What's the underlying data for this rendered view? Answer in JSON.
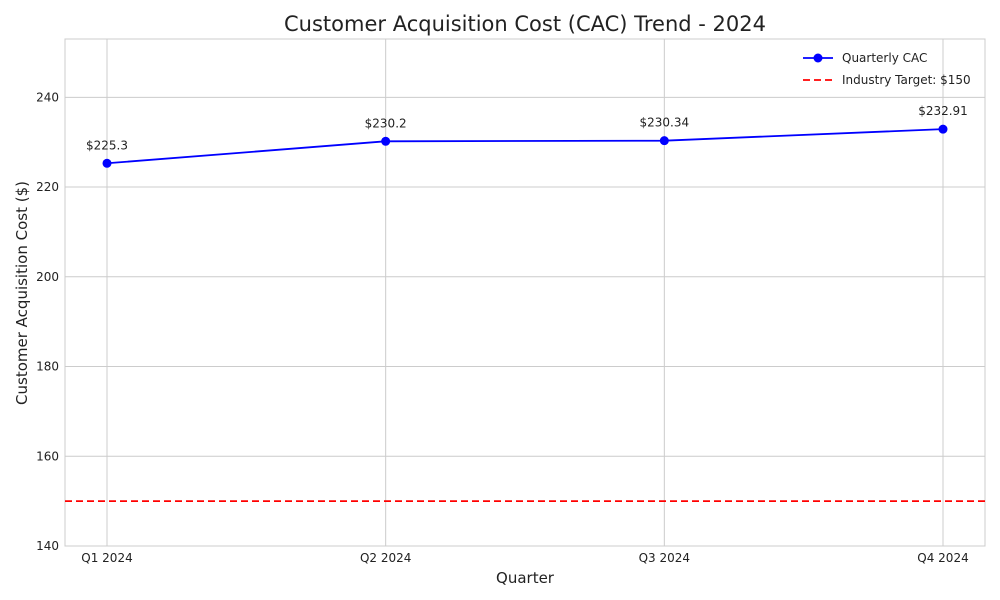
{
  "chart_data": {
    "type": "line",
    "title": "Customer Acquisition Cost (CAC) Trend - 2024",
    "xlabel": "Quarter",
    "ylabel": "Customer Acquisition Cost ($)",
    "categories": [
      "Q1 2024",
      "Q2 2024",
      "Q3 2024",
      "Q4 2024"
    ],
    "ylim": [
      140,
      253
    ],
    "yticks": [
      140,
      160,
      180,
      200,
      220,
      240
    ],
    "grid": true,
    "legend_position": "top-right",
    "series": [
      {
        "name": "Quarterly CAC",
        "values": [
          225.3,
          230.2,
          230.34,
          232.91
        ],
        "data_labels": [
          "$225.3",
          "$230.2",
          "$230.34",
          "$232.91"
        ],
        "color": "#0000ff",
        "style": "solid",
        "marker": "circle"
      }
    ],
    "reference_lines": [
      {
        "name": "Industry Target: $150",
        "value": 150,
        "color": "#ff0000",
        "style": "dashed"
      }
    ]
  }
}
